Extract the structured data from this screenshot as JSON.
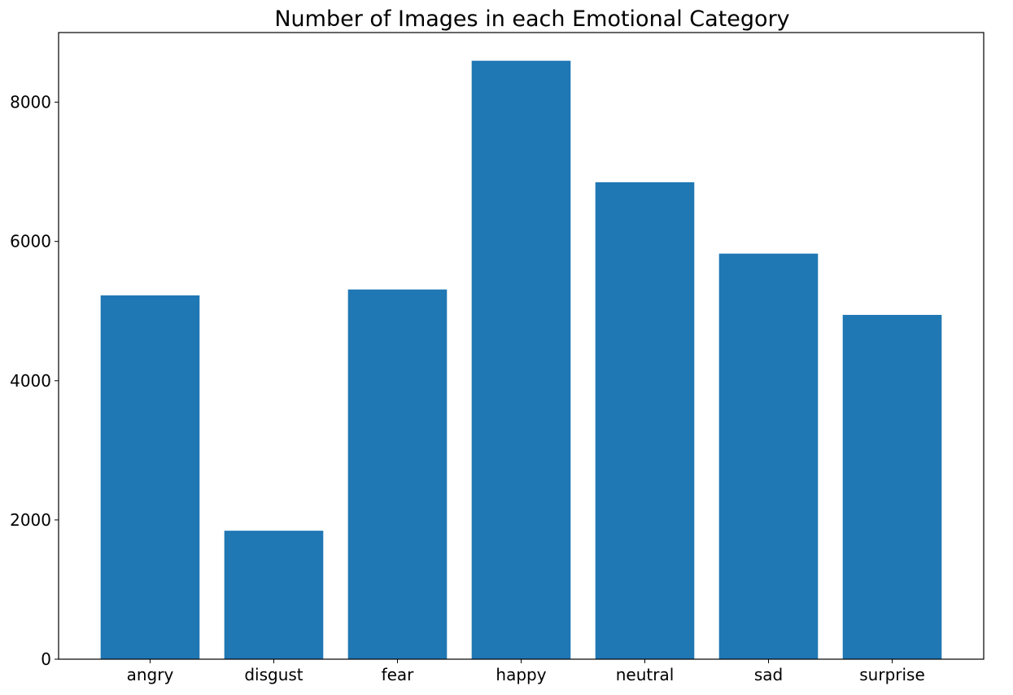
{
  "chart_data": {
    "type": "bar",
    "title": "Number of Images in each Emotional Category",
    "xlabel": "",
    "ylabel": "",
    "categories": [
      "angry",
      "disgust",
      "fear",
      "happy",
      "neutral",
      "sad",
      "surprise"
    ],
    "values": [
      5225,
      1845,
      5310,
      8595,
      6850,
      5825,
      4945
    ],
    "ylim": [
      0,
      9000
    ],
    "yticks": [
      0,
      2000,
      4000,
      6000,
      8000
    ],
    "ytick_labels": [
      "0",
      "2000",
      "4000",
      "6000",
      "8000"
    ],
    "bar_color": "#1f77b4",
    "grid": false,
    "legend": "none"
  }
}
